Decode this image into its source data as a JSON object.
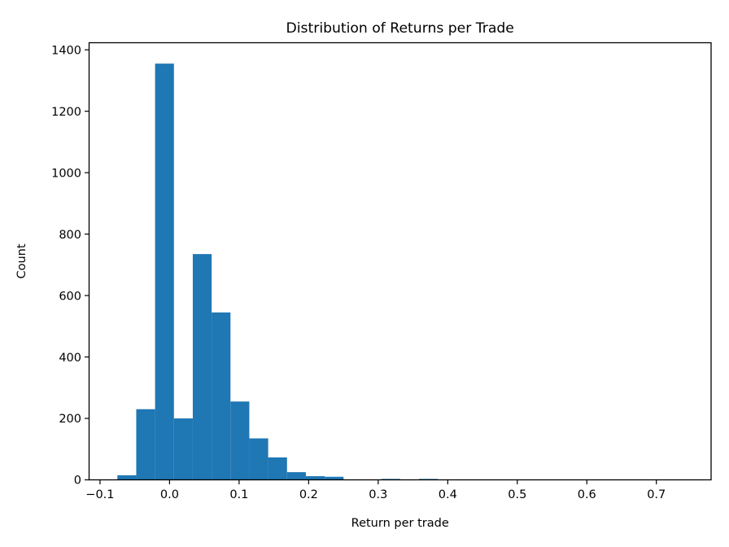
{
  "chart_data": {
    "type": "bar",
    "subtype": "histogram",
    "title": "Distribution of Returns per Trade",
    "xlabel": "Return per trade",
    "ylabel": "Count",
    "bin_edges": [
      -0.075,
      -0.0479,
      -0.0208,
      0.0063,
      0.0334,
      0.0605,
      0.0876,
      0.1147,
      0.1418,
      0.1689,
      0.196,
      0.2231,
      0.2502,
      0.2773,
      0.3044,
      0.3315,
      0.3586,
      0.3857,
      0.4128,
      0.4399,
      0.467,
      0.4941,
      0.5212,
      0.5483,
      0.5754,
      0.6025,
      0.6296,
      0.6567,
      0.6838,
      0.7109,
      0.738
    ],
    "counts": [
      15,
      230,
      1355,
      200,
      735,
      545,
      255,
      135,
      73,
      25,
      12,
      10,
      0,
      0,
      3,
      0,
      3,
      0,
      0,
      0,
      0,
      0,
      0,
      0,
      0,
      0,
      0,
      0,
      0,
      1
    ],
    "xlim": [
      -0.1157,
      0.7787
    ],
    "ylim": [
      0,
      1423
    ],
    "xticks": {
      "values": [
        -0.1,
        0.0,
        0.1,
        0.2,
        0.3,
        0.4,
        0.5,
        0.6,
        0.7
      ],
      "labels": [
        "−0.1",
        "0.0",
        "0.1",
        "0.2",
        "0.3",
        "0.4",
        "0.5",
        "0.6",
        "0.7"
      ]
    },
    "yticks": {
      "values": [
        0,
        200,
        400,
        600,
        800,
        1000,
        1200,
        1400
      ],
      "labels": [
        "0",
        "200",
        "400",
        "600",
        "800",
        "1000",
        "1200",
        "1400"
      ]
    },
    "colors": {
      "bar": "#1f77b4",
      "spine": "#000000",
      "text": "#000000",
      "background": "#ffffff"
    },
    "grid": false,
    "legend": null
  }
}
